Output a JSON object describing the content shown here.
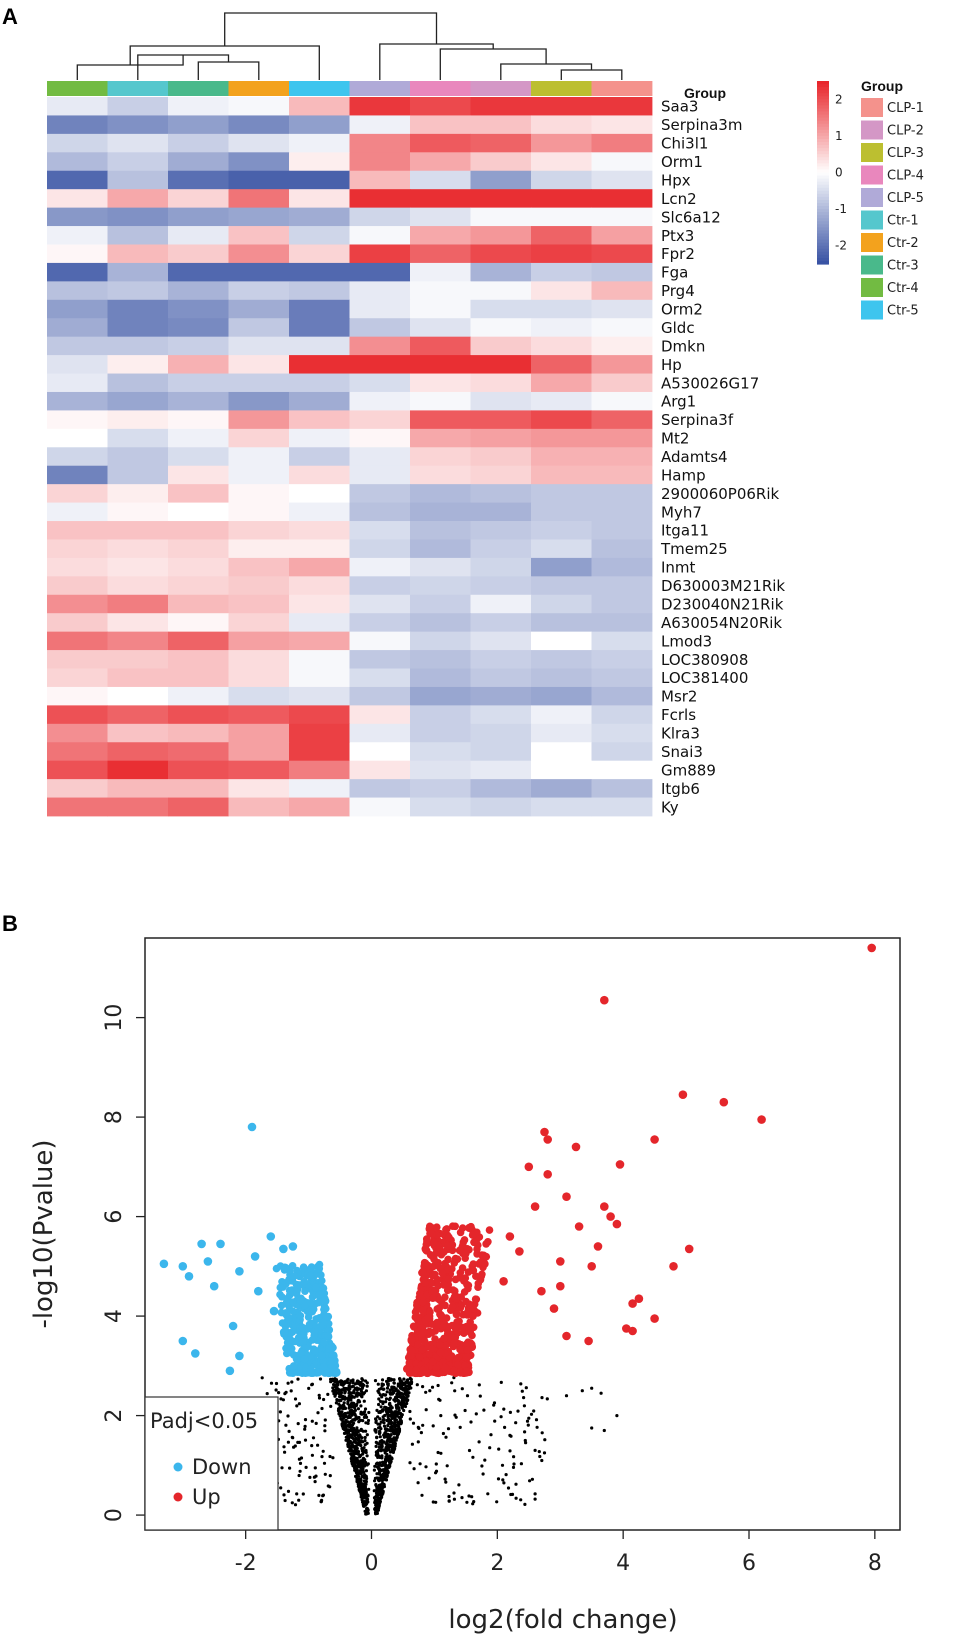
{
  "panel_labels": {
    "a": "A",
    "b": "B"
  },
  "chart_data": [
    {
      "type": "heatmap",
      "title": "",
      "group_title": "Group",
      "columns": [
        "Ctr-4",
        "Ctr-1",
        "Ctr-3",
        "Ctr-2",
        "Ctr-5",
        "CLP-5",
        "CLP-4",
        "CLP-2",
        "CLP-3",
        "CLP-1"
      ],
      "rows": [
        "Saa3",
        "Serpina3m",
        "Chi3l1",
        "Orm1",
        "Hpx",
        "Lcn2",
        "Slc6a12",
        "Ptx3",
        "Fpr2",
        "Fga",
        "Prg4",
        "Orm2",
        "Gldc",
        "Dmkn",
        "Hp",
        "A530026G17",
        "Arg1",
        "Serpina3f",
        "Mt2",
        "Adamts4",
        "Hamp",
        "2900060P06Rik",
        "Myh7",
        "Itga11",
        "Tmem25",
        "Inmt",
        "D630003M21Rik",
        "D230040N21Rik",
        "A630054N20Rik",
        "Lmod3",
        "LOC380908",
        "LOC381400",
        "Msr2",
        "Fcrls",
        "Klra3",
        "Snai3",
        "Gm889",
        "Itgb6",
        "Ky"
      ],
      "values": [
        [
          -0.3,
          -0.7,
          -0.2,
          -0.1,
          0.8,
          2.3,
          2.1,
          2.3,
          2.3,
          2.3
        ],
        [
          -1.8,
          -1.6,
          -1.4,
          -1.7,
          -1.4,
          -0.2,
          0.7,
          0.7,
          0.4,
          0.3
        ],
        [
          -0.6,
          -0.4,
          -0.7,
          -0.4,
          -0.2,
          1.4,
          1.9,
          1.8,
          1.2,
          1.5
        ],
        [
          -1.0,
          -0.7,
          -1.2,
          -1.6,
          0.2,
          1.4,
          1.0,
          0.6,
          0.3,
          -0.1
        ],
        [
          -2.2,
          -0.9,
          -2.1,
          -2.3,
          -2.3,
          0.8,
          -0.5,
          -1.4,
          -0.6,
          -0.4
        ],
        [
          0.3,
          1.0,
          0.5,
          1.6,
          0.3,
          2.4,
          2.4,
          2.4,
          2.4,
          2.4
        ],
        [
          -1.5,
          -1.6,
          -1.4,
          -1.3,
          -1.2,
          -0.6,
          -0.4,
          -0.1,
          -0.1,
          -0.1
        ],
        [
          -0.2,
          -0.9,
          -0.3,
          0.7,
          -0.6,
          -0.1,
          1.0,
          1.2,
          1.8,
          1.1
        ],
        [
          0.1,
          0.8,
          0.6,
          1.3,
          0.5,
          2.2,
          1.8,
          2.1,
          2.2,
          2.1
        ],
        [
          -2.2,
          -1.1,
          -2.2,
          -2.2,
          -2.2,
          -2.2,
          -0.2,
          -1.1,
          -0.7,
          -0.8
        ],
        [
          -0.9,
          -0.8,
          -1.1,
          -0.7,
          -0.8,
          -0.3,
          -0.1,
          -0.1,
          0.3,
          0.8
        ],
        [
          -1.4,
          -1.8,
          -1.6,
          -1.2,
          -1.9,
          -0.3,
          -0.1,
          -0.5,
          -0.5,
          -0.4
        ],
        [
          -1.2,
          -1.8,
          -1.7,
          -0.8,
          -1.9,
          -0.8,
          -0.4,
          -0.1,
          -0.2,
          -0.1
        ],
        [
          -0.8,
          -0.8,
          -0.7,
          -0.4,
          -0.4,
          1.3,
          1.9,
          0.6,
          0.4,
          0.2
        ],
        [
          -0.4,
          0.2,
          0.9,
          0.3,
          2.4,
          2.4,
          2.4,
          2.4,
          1.8,
          1.2
        ],
        [
          -0.3,
          -0.9,
          -0.7,
          -0.7,
          -0.7,
          -0.5,
          0.3,
          0.4,
          1.0,
          0.6
        ],
        [
          -1.1,
          -1.3,
          -1.1,
          -1.5,
          -1.2,
          -0.2,
          -0.1,
          -0.4,
          -0.3,
          -0.1
        ],
        [
          0.1,
          0.2,
          0.1,
          1.2,
          0.7,
          0.5,
          1.9,
          1.9,
          2.1,
          1.8
        ],
        [
          0.0,
          -0.5,
          -0.2,
          0.5,
          -0.2,
          0.1,
          1.0,
          1.1,
          1.2,
          1.2
        ],
        [
          -0.6,
          -0.8,
          -0.5,
          -0.2,
          -0.7,
          -0.3,
          0.5,
          0.6,
          0.9,
          0.9
        ],
        [
          -1.8,
          -0.8,
          0.3,
          -0.2,
          0.4,
          -0.3,
          0.4,
          0.5,
          0.8,
          0.8
        ],
        [
          0.5,
          0.2,
          0.7,
          0.1,
          0.0,
          -0.8,
          -1.0,
          -0.9,
          -0.8,
          -0.8
        ],
        [
          -0.2,
          0.1,
          0.0,
          0.1,
          -0.2,
          -0.9,
          -1.1,
          -1.1,
          -0.8,
          -0.8
        ],
        [
          0.7,
          0.7,
          0.7,
          0.5,
          0.4,
          -0.5,
          -0.9,
          -0.8,
          -0.7,
          -0.8
        ],
        [
          0.5,
          0.4,
          0.5,
          0.2,
          0.2,
          -0.6,
          -1.0,
          -0.7,
          -0.5,
          -0.9
        ],
        [
          0.4,
          0.3,
          0.4,
          0.7,
          1.0,
          -0.2,
          -0.4,
          -0.6,
          -1.4,
          -1.0
        ],
        [
          0.6,
          0.4,
          0.5,
          0.6,
          0.4,
          -0.7,
          -0.6,
          -0.7,
          -0.8,
          -0.8
        ],
        [
          1.3,
          1.5,
          0.8,
          0.7,
          0.3,
          -0.4,
          -0.7,
          -0.2,
          -0.6,
          -0.8
        ],
        [
          0.6,
          0.3,
          0.1,
          0.5,
          -0.3,
          -0.7,
          -0.9,
          -0.7,
          -0.9,
          -0.9
        ],
        [
          1.6,
          1.4,
          1.8,
          1.1,
          1.0,
          -0.1,
          -0.6,
          -0.4,
          0.0,
          -0.5
        ],
        [
          0.6,
          0.6,
          0.7,
          0.4,
          -0.1,
          -0.8,
          -0.9,
          -0.7,
          -0.8,
          -0.7
        ],
        [
          0.5,
          0.7,
          0.7,
          0.4,
          -0.1,
          -0.5,
          -1.0,
          -0.8,
          -0.9,
          -0.8
        ],
        [
          0.1,
          0.0,
          -0.2,
          -0.5,
          -0.4,
          -0.8,
          -1.3,
          -1.2,
          -1.3,
          -1.0
        ],
        [
          2.0,
          1.8,
          2.0,
          1.9,
          2.1,
          0.3,
          -0.7,
          -0.5,
          -0.2,
          -0.6
        ],
        [
          1.3,
          0.7,
          0.8,
          1.1,
          2.2,
          -0.3,
          -0.7,
          -0.6,
          -0.3,
          -0.5
        ],
        [
          1.6,
          1.8,
          1.7,
          1.1,
          2.2,
          0.0,
          -0.5,
          -0.6,
          0.0,
          -0.6
        ],
        [
          2.0,
          2.4,
          2.0,
          1.9,
          1.5,
          0.3,
          -0.4,
          -0.3,
          0.0,
          0.0
        ],
        [
          0.6,
          0.8,
          0.8,
          0.3,
          -0.2,
          -0.8,
          -0.7,
          -1.0,
          -1.2,
          -0.9
        ],
        [
          1.6,
          1.6,
          1.8,
          0.8,
          1.0,
          -0.1,
          -0.5,
          -0.6,
          -0.5,
          -0.5
        ]
      ],
      "scale": {
        "min": -2.5,
        "max": 2.5,
        "ticks": [
          2,
          1,
          0,
          -1,
          -2
        ],
        "tick_labels": [
          "2",
          "1",
          "0",
          "-1",
          "-2"
        ],
        "low_color": "#3953a4",
        "mid_color": "#ffffff",
        "high_color": "#e8262b"
      },
      "groups": [
        {
          "name": "CLP-1",
          "color": "#f4928c"
        },
        {
          "name": "CLP-2",
          "color": "#d497c6"
        },
        {
          "name": "CLP-3",
          "color": "#bcbf30"
        },
        {
          "name": "CLP-4",
          "color": "#e987bd"
        },
        {
          "name": "CLP-5",
          "color": "#b0aad8"
        },
        {
          "name": "Ctr-1",
          "color": "#55c7cd"
        },
        {
          "name": "Ctr-2",
          "color": "#f3a21d"
        },
        {
          "name": "Ctr-3",
          "color": "#49b98b"
        },
        {
          "name": "Ctr-4",
          "color": "#72bb42"
        },
        {
          "name": "Ctr-5",
          "color": "#3ec5ee"
        }
      ]
    },
    {
      "type": "scatter",
      "title": "",
      "xlabel": "log2(fold change)",
      "ylabel": "-log10(Pvalue)",
      "xlim": [
        -3.6,
        8.4
      ],
      "ylim": [
        -0.3,
        11.6
      ],
      "xticks": [
        -2,
        0,
        2,
        4,
        6,
        8
      ],
      "yticks": [
        0,
        2,
        4,
        6,
        8,
        10
      ],
      "xtick_labels": [
        "-2",
        "0",
        "2",
        "4",
        "6",
        "8"
      ],
      "ytick_labels": [
        "0",
        "2",
        "4",
        "6",
        "8",
        "10"
      ],
      "legend": {
        "title": "Padj<0.05",
        "entries": [
          "Down",
          "Up"
        ],
        "position": "bottom-left"
      },
      "series": [
        {
          "name": "Down",
          "color": "#3bb6ec",
          "points": [
            [
              -1.9,
              7.8
            ],
            [
              -3.3,
              5.05
            ],
            [
              -3.0,
              5.0
            ],
            [
              -2.9,
              4.8
            ],
            [
              -2.7,
              5.45
            ],
            [
              -2.4,
              5.45
            ],
            [
              -2.6,
              5.1
            ],
            [
              -2.5,
              4.6
            ],
            [
              -2.8,
              3.25
            ],
            [
              -3.0,
              3.5
            ],
            [
              -2.2,
              3.8
            ],
            [
              -2.1,
              3.2
            ],
            [
              -1.8,
              4.5
            ],
            [
              -1.6,
              5.6
            ],
            [
              -1.4,
              5.35
            ],
            [
              -1.25,
              5.4
            ],
            [
              -2.25,
              2.9
            ],
            [
              -2.1,
              4.9
            ],
            [
              -1.85,
              5.2
            ],
            [
              -1.55,
              4.1
            ]
          ]
        },
        {
          "name": "Up",
          "color": "#e4262b",
          "points": [
            [
              7.95,
              11.4
            ],
            [
              3.7,
              10.35
            ],
            [
              4.95,
              8.45
            ],
            [
              5.6,
              8.3
            ],
            [
              6.2,
              7.95
            ],
            [
              2.75,
              7.7
            ],
            [
              2.8,
              7.55
            ],
            [
              4.5,
              7.55
            ],
            [
              3.25,
              7.4
            ],
            [
              3.95,
              7.05
            ],
            [
              2.5,
              7.0
            ],
            [
              2.8,
              6.85
            ],
            [
              3.1,
              6.4
            ],
            [
              3.7,
              6.2
            ],
            [
              3.9,
              5.85
            ],
            [
              5.05,
              5.35
            ],
            [
              4.8,
              5.0
            ],
            [
              4.25,
              4.35
            ],
            [
              4.15,
              4.25
            ],
            [
              4.05,
              3.75
            ],
            [
              4.15,
              3.7
            ],
            [
              4.5,
              3.95
            ],
            [
              3.45,
              3.5
            ],
            [
              3.1,
              3.6
            ],
            [
              3.0,
              4.6
            ],
            [
              2.7,
              4.5
            ],
            [
              2.35,
              5.3
            ],
            [
              2.1,
              4.7
            ],
            [
              2.9,
              4.15
            ],
            [
              3.5,
              5.0
            ],
            [
              3.6,
              5.4
            ],
            [
              3.3,
              5.8
            ],
            [
              3.0,
              5.1
            ],
            [
              2.2,
              5.6
            ],
            [
              2.6,
              6.2
            ],
            [
              3.8,
              6.0
            ]
          ]
        }
      ]
    }
  ]
}
